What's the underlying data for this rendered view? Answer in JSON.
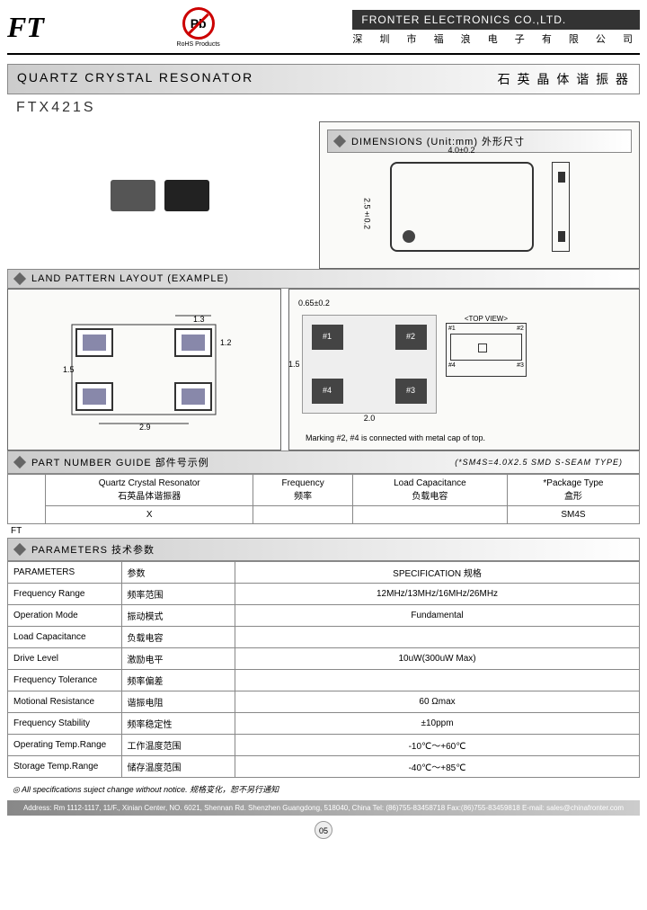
{
  "header": {
    "logo": "FT",
    "pb": "Pb",
    "pb_label": "RoHS Products",
    "company_en": "FRONTER ELECTRONICS CO.,LTD.",
    "company_cn": "深 圳 市 福 浪 电 子 有 限 公 司"
  },
  "title": {
    "en": "QUARTZ CRYSTAL RESONATOR",
    "cn": "石 英 晶 体 谐 振 器"
  },
  "part": "FTX421S",
  "dimensions": {
    "header": "DIMENSIONS (Unit:mm)  外形尺寸",
    "width": "4.0±0.2",
    "height": "2.5±0.2",
    "thick": "0.65±0.2"
  },
  "land": {
    "header": "LAND PATTERN LAYOUT (EXAMPLE)",
    "w1": "1.3",
    "h1": "1.2",
    "gap_v": "1.5",
    "gap_h": "2.9"
  },
  "footprint": {
    "p1": "#1",
    "p2": "#2",
    "p3": "#3",
    "p4": "#4",
    "topview": "<TOP VIEW>",
    "dim_v": "1.5",
    "dim_h": "2.0",
    "note": "Marking #2, #4 is connected with metal cap of top."
  },
  "partguide": {
    "header": "PART NUMBER GUIDE  部件号示例",
    "note": "(*SM4S=4.0X2.5 SMD S-SEAM TYPE)",
    "cols": [
      {
        "en": "Quartz Crystal Resonator",
        "cn": "石英晶体谐振器"
      },
      {
        "en": "Frequency",
        "cn": "频率"
      },
      {
        "en": "Load Capacitance",
        "cn": "负载电容"
      },
      {
        "en": "*Package Type",
        "cn": "盒形"
      }
    ],
    "row": [
      "FT",
      "X",
      "",
      "",
      "SM4S"
    ]
  },
  "params": {
    "header": "PARAMETERS  技术参数",
    "col1": "PARAMETERS",
    "col1cn": "参数",
    "col2": "SPECIFICATION  规格",
    "rows": [
      {
        "en": "Frequency Range",
        "cn": "频率范围",
        "val": "12MHz/13MHz/16MHz/26MHz"
      },
      {
        "en": "Operation Mode",
        "cn": "振动模式",
        "val": "Fundamental"
      },
      {
        "en": "Load Capacitance",
        "cn": "负载电容",
        "val": ""
      },
      {
        "en": "Drive Level",
        "cn": "激励电平",
        "val": "10uW(300uW Max)"
      },
      {
        "en": "Frequency Tolerance",
        "cn": "频率偏差",
        "val": ""
      },
      {
        "en": "Motional Resistance",
        "cn": "谐振电阻",
        "val": "60 Ωmax"
      },
      {
        "en": "Frequency Stability",
        "cn": "频率稳定性",
        "val": "±10ppm"
      },
      {
        "en": "Operating Temp.Range",
        "cn": "工作温度范围",
        "val": "-10℃～+60℃"
      },
      {
        "en": "Storage Temp.Range",
        "cn": "储存温度范围",
        "val": "-40℃～+85℃"
      }
    ]
  },
  "footer": {
    "note": "◎ All specifications suject change without notice.  规格变化，恕不另行通知",
    "address": "Address: Rm 1112-1117, 11/F., Xinian Center, NO. 6021, Shennan Rd. Shenzhen Guangdong, 518040, China Tel: (86)755-83458718 Fax:(86)755-83459818 E-mail: sales@chinafronter.com",
    "page": "05"
  }
}
